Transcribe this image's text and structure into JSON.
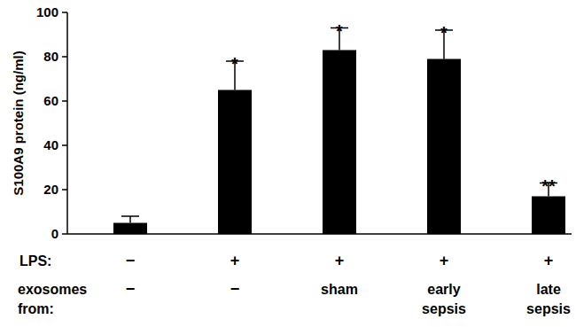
{
  "chart_data": {
    "type": "bar",
    "y_label": "S100A9 protein (ng/ml)",
    "categories": [
      "−",
      "−",
      "sham",
      "early\nsepsis",
      "late\nsepsis"
    ],
    "lps_row": [
      "−",
      "+",
      "+",
      "+",
      "+"
    ],
    "row_labels": [
      "LPS:",
      "exosomes\nfrom:"
    ],
    "values": [
      5,
      65,
      83,
      79,
      17
    ],
    "errors": [
      3,
      13,
      10,
      13,
      6
    ],
    "annotations": [
      "",
      "*",
      "*",
      "*",
      "**"
    ],
    "color": "#000000",
    "ylim": [
      0,
      100
    ],
    "yticks": [
      0,
      20,
      40,
      60,
      80,
      100
    ],
    "grid": false
  }
}
